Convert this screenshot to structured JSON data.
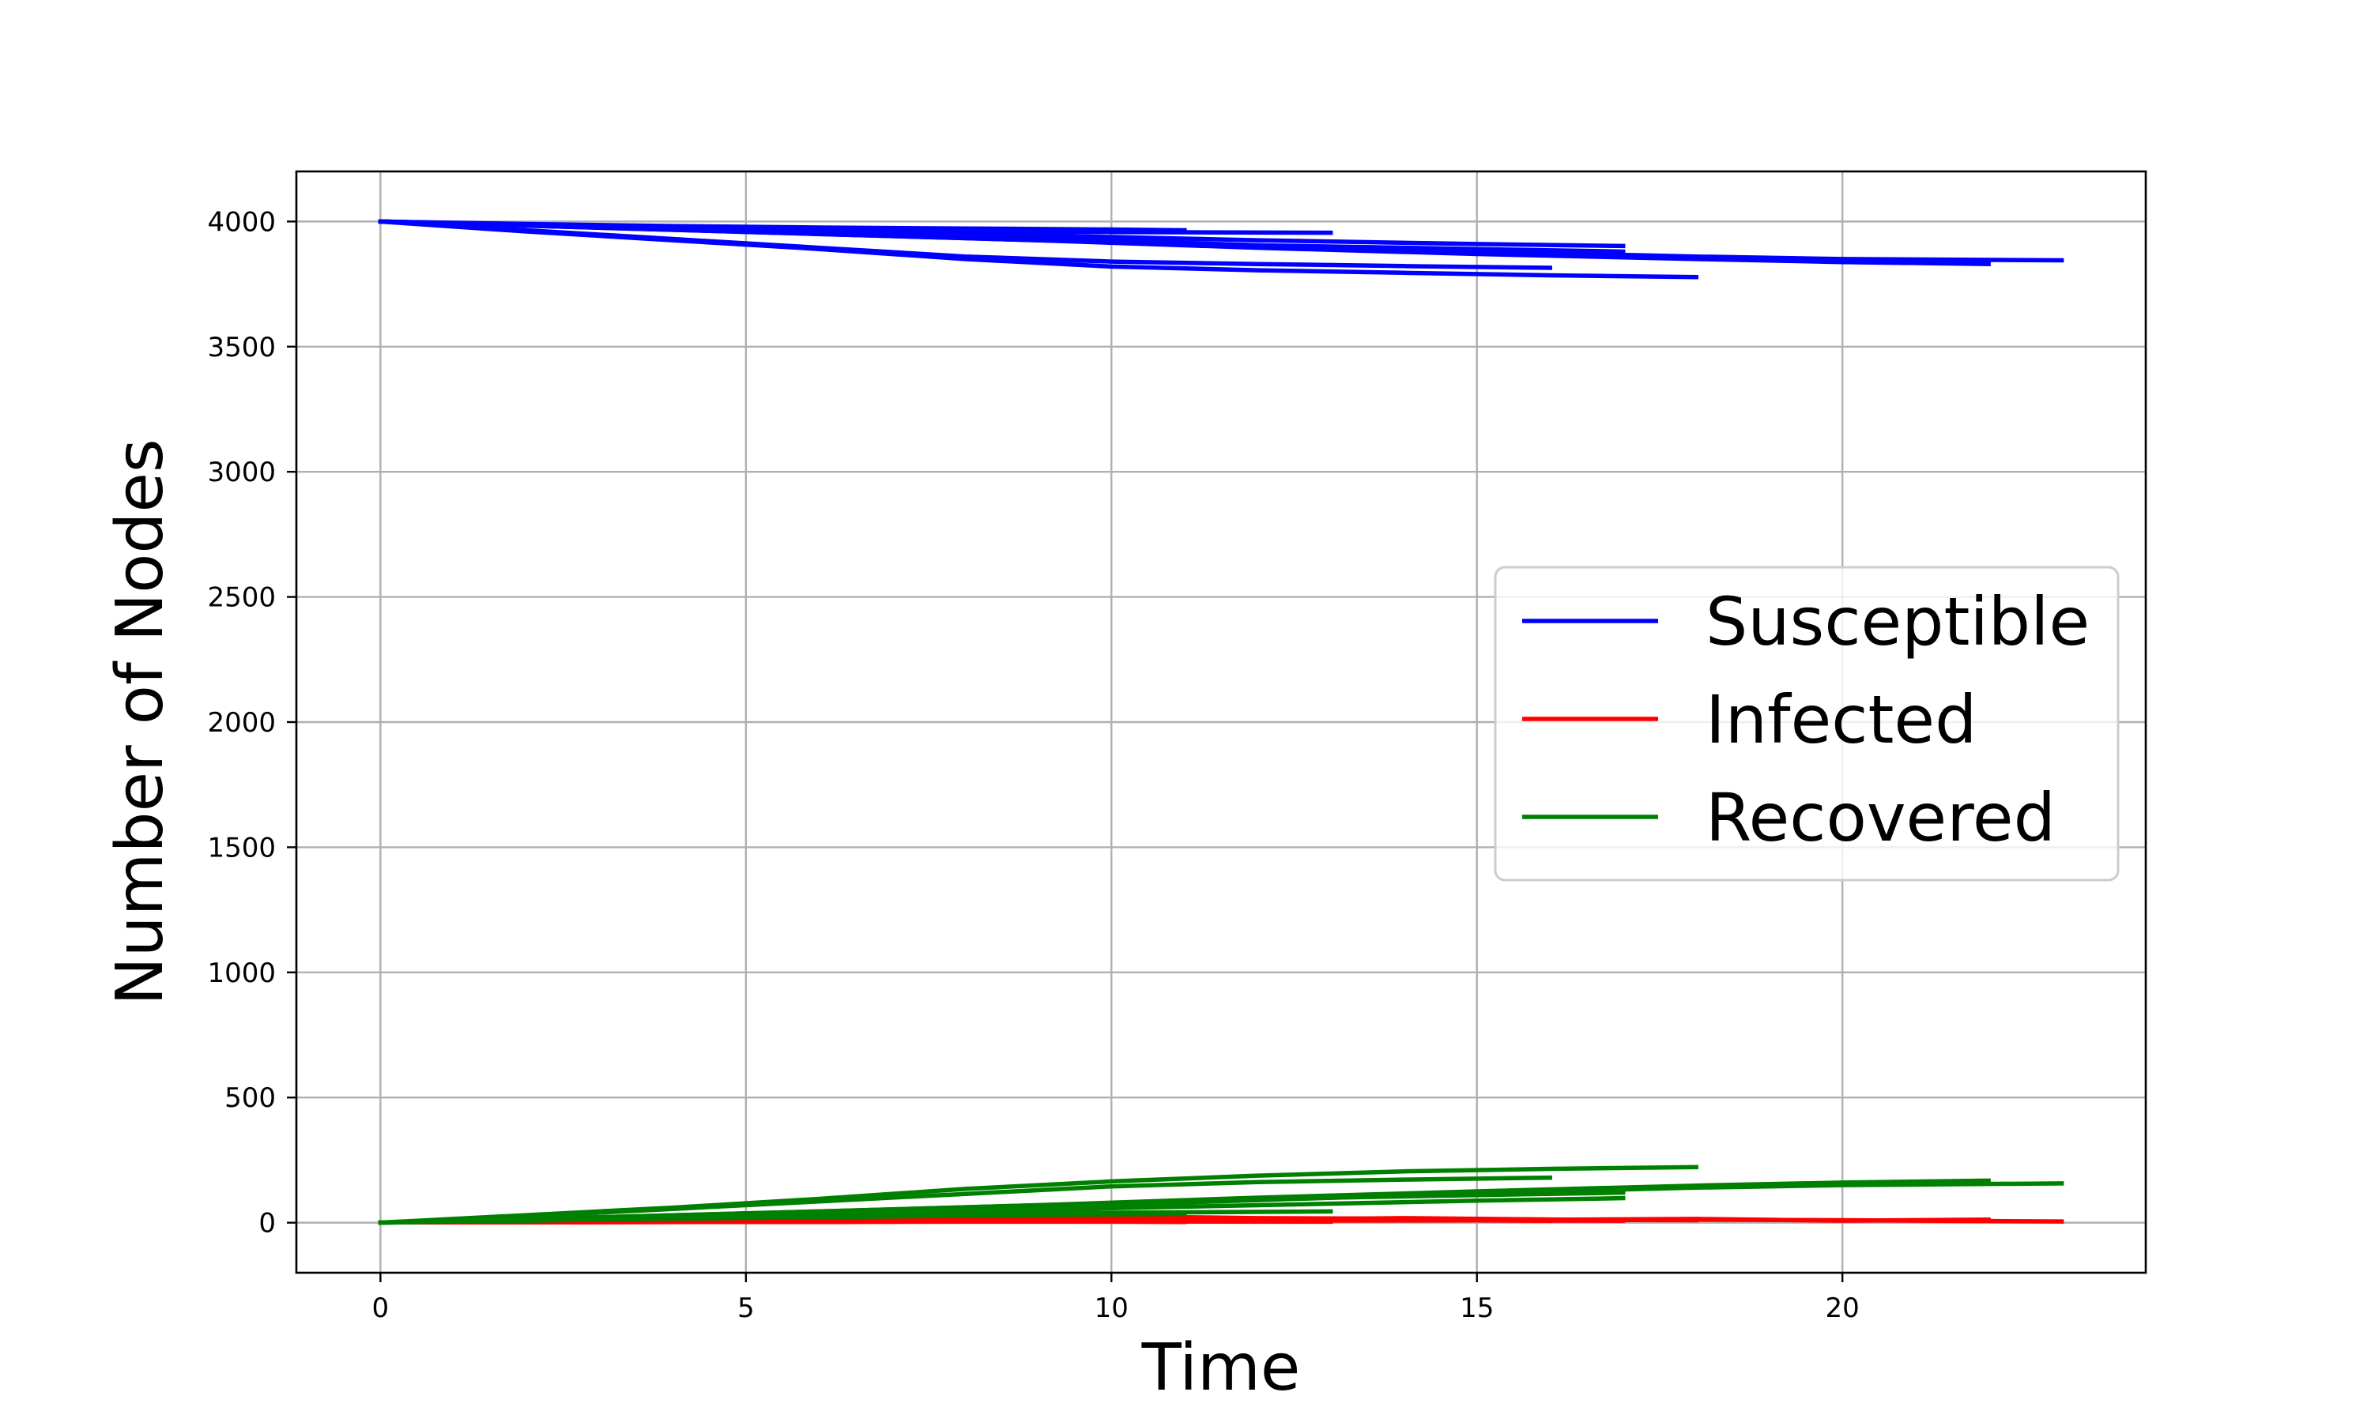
{
  "chart_data": {
    "type": "line",
    "title": "",
    "xlabel": "Time",
    "ylabel": "Number of Nodes",
    "xlim": [
      -1.15,
      24.15
    ],
    "ylim": [
      -200,
      4200
    ],
    "xticks": [
      0,
      5,
      10,
      15,
      20
    ],
    "yticks": [
      0,
      500,
      1000,
      1500,
      2000,
      2500,
      3000,
      3500,
      4000
    ],
    "grid": true,
    "legend_position": "center-right",
    "series": [
      {
        "name": "Susceptible",
        "color": "#0000ff",
        "runs": [
          {
            "x": [
              0,
              2,
              4,
              6,
              8,
              10,
              12,
              14,
              16
            ],
            "y": [
              4000,
              3965,
              3930,
              3895,
              3860,
              3840,
              3830,
              3822,
              3815
            ]
          },
          {
            "x": [
              0,
              2,
              4,
              6,
              8,
              10,
              12,
              14,
              16,
              18
            ],
            "y": [
              4000,
              3960,
              3925,
              3890,
              3850,
              3820,
              3805,
              3795,
              3785,
              3778
            ]
          },
          {
            "x": [
              0,
              2,
              4,
              6,
              8,
              10,
              13
            ],
            "y": [
              4000,
              3985,
              3975,
              3968,
              3962,
              3958,
              3955
            ]
          },
          {
            "x": [
              0,
              3,
              6,
              9,
              12,
              15,
              17
            ],
            "y": [
              4000,
              3980,
              3962,
              3945,
              3925,
              3910,
              3902
            ]
          },
          {
            "x": [
              0,
              3,
              6,
              9,
              12,
              15,
              17
            ],
            "y": [
              4000,
              3975,
              3950,
              3925,
              3905,
              3890,
              3880
            ]
          },
          {
            "x": [
              0,
              3,
              6,
              9,
              12,
              15,
              18,
              20,
              22
            ],
            "y": [
              4000,
              3975,
              3950,
              3925,
              3895,
              3870,
              3850,
              3838,
              3830
            ]
          },
          {
            "x": [
              0,
              3,
              6,
              9,
              12,
              15,
              18,
              20,
              23
            ],
            "y": [
              4000,
              3980,
              3960,
              3935,
              3905,
              3880,
              3860,
              3850,
              3845
            ]
          },
          {
            "x": [
              0,
              2,
              4,
              6,
              8,
              10,
              11
            ],
            "y": [
              4000,
              3990,
              3982,
              3976,
              3972,
              3968,
              3965
            ]
          }
        ]
      },
      {
        "name": "Infected",
        "color": "#ff0000",
        "runs": [
          {
            "x": [
              0,
              2,
              4,
              6,
              8,
              10,
              12,
              14,
              16
            ],
            "y": [
              1,
              3,
              5,
              8,
              10,
              13,
              12,
              10,
              8
            ]
          },
          {
            "x": [
              0,
              2,
              4,
              6,
              8,
              10,
              11,
              12,
              14,
              16,
              18
            ],
            "y": [
              1,
              4,
              7,
              10,
              14,
              18,
              22,
              18,
              16,
              12,
              10
            ]
          },
          {
            "x": [
              0,
              2,
              4,
              6,
              8,
              10,
              13
            ],
            "y": [
              1,
              2,
              3,
              4,
              5,
              5,
              4
            ]
          },
          {
            "x": [
              0,
              3,
              6,
              9,
              12,
              14,
              17
            ],
            "y": [
              1,
              3,
              6,
              9,
              12,
              18,
              10
            ]
          },
          {
            "x": [
              0,
              3,
              6,
              9,
              12,
              15,
              17
            ],
            "y": [
              1,
              2,
              4,
              6,
              8,
              9,
              8
            ]
          },
          {
            "x": [
              0,
              3,
              6,
              9,
              12,
              15,
              18,
              20,
              22
            ],
            "y": [
              1,
              3,
              6,
              9,
              12,
              10,
              15,
              8,
              12
            ]
          },
          {
            "x": [
              0,
              3,
              6,
              9,
              12,
              15,
              18,
              20,
              23
            ],
            "y": [
              1,
              3,
              5,
              8,
              10,
              9,
              12,
              10,
              5
            ]
          },
          {
            "x": [
              0,
              2,
              4,
              6,
              8,
              10,
              11
            ],
            "y": [
              1,
              2,
              3,
              3,
              4,
              4,
              3
            ]
          }
        ]
      },
      {
        "name": "Recovered",
        "color": "#008000",
        "runs": [
          {
            "x": [
              0,
              2,
              4,
              6,
              8,
              10,
              12,
              14,
              16
            ],
            "y": [
              0,
              25,
              55,
              85,
              115,
              145,
              162,
              172,
              180
            ]
          },
          {
            "x": [
              0,
              2,
              4,
              6,
              8,
              10,
              12,
              14,
              16,
              18
            ],
            "y": [
              0,
              30,
              60,
              95,
              135,
              165,
              188,
              205,
              215,
              222
            ]
          },
          {
            "x": [
              0,
              2,
              4,
              6,
              8,
              10,
              13
            ],
            "y": [
              0,
              10,
              20,
              28,
              35,
              40,
              45
            ]
          },
          {
            "x": [
              0,
              3,
              6,
              9,
              12,
              15,
              17
            ],
            "y": [
              0,
              18,
              35,
              52,
              70,
              88,
              98
            ]
          },
          {
            "x": [
              0,
              3,
              6,
              9,
              12,
              15,
              17
            ],
            "y": [
              0,
              22,
              45,
              70,
              95,
              110,
              120
            ]
          },
          {
            "x": [
              0,
              3,
              6,
              9,
              12,
              15,
              18,
              20,
              22
            ],
            "y": [
              0,
              22,
              45,
              70,
              100,
              125,
              148,
              160,
              168
            ]
          },
          {
            "x": [
              0,
              3,
              6,
              9,
              12,
              15,
              18,
              20,
              23
            ],
            "y": [
              0,
              18,
              40,
              62,
              90,
              118,
              140,
              150,
              157
            ]
          },
          {
            "x": [
              0,
              2,
              4,
              6,
              8,
              10,
              11
            ],
            "y": [
              0,
              8,
              16,
              22,
              28,
              33,
              35
            ]
          }
        ]
      }
    ]
  }
}
